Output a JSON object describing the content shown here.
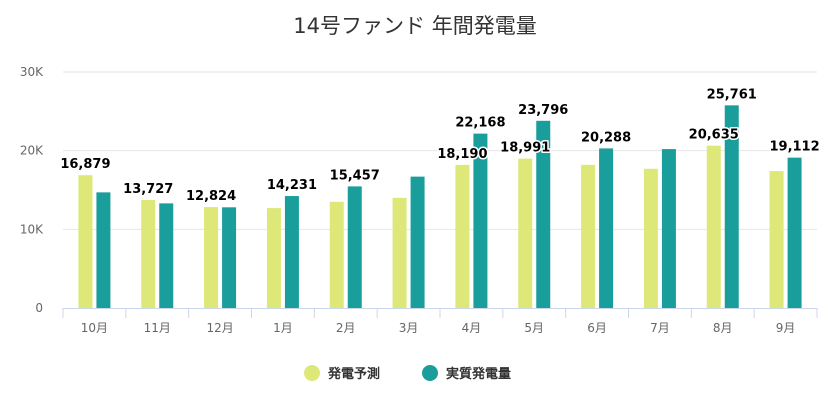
{
  "chart_data": {
    "type": "bar",
    "title": "14号ファンド 年間発電量",
    "categories": [
      "10月",
      "11月",
      "12月",
      "1月",
      "2月",
      "3月",
      "4月",
      "5月",
      "6月",
      "7月",
      "8月",
      "9月"
    ],
    "series": [
      {
        "name": "発電予測",
        "color": "#dde878",
        "values": [
          16879,
          13727,
          12824,
          12700,
          13500,
          14000,
          18190,
          18991,
          18200,
          17700,
          20635,
          17400
        ]
      },
      {
        "name": "実質発電量",
        "color": "#1a9e9c",
        "values": [
          14700,
          13300,
          12800,
          14231,
          15457,
          16700,
          22168,
          23796,
          20288,
          20200,
          25761,
          19112
        ]
      }
    ],
    "data_labels": [
      {
        "category": "10月",
        "series": "発電予測",
        "text": "16,879"
      },
      {
        "category": "11月",
        "series": "発電予測",
        "text": "13,727"
      },
      {
        "category": "12月",
        "series": "発電予測",
        "text": "12,824"
      },
      {
        "category": "1月",
        "series": "実質発電量",
        "text": "14,231"
      },
      {
        "category": "2月",
        "series": "実質発電量",
        "text": "15,457"
      },
      {
        "category": "4月",
        "series": "発電予測",
        "text": "18,190"
      },
      {
        "category": "4月",
        "series": "実質発電量",
        "text": "22,168"
      },
      {
        "category": "5月",
        "series": "発電予測",
        "text": "18,991"
      },
      {
        "category": "5月",
        "series": "実質発電量",
        "text": "23,796"
      },
      {
        "category": "6月",
        "series": "実質発電量",
        "text": "20,288"
      },
      {
        "category": "8月",
        "series": "発電予測",
        "text": "20,635"
      },
      {
        "category": "8月",
        "series": "実質発電量",
        "text": "25,761"
      },
      {
        "category": "9月",
        "series": "実質発電量",
        "text": "19,112"
      }
    ],
    "yticks": [
      {
        "value": 0,
        "label": "0"
      },
      {
        "value": 10000,
        "label": "10K"
      },
      {
        "value": 20000,
        "label": "20K"
      },
      {
        "value": 30000,
        "label": "30K"
      }
    ],
    "ylim": [
      0,
      30000
    ],
    "grid": true,
    "legend": "bottom-center"
  }
}
